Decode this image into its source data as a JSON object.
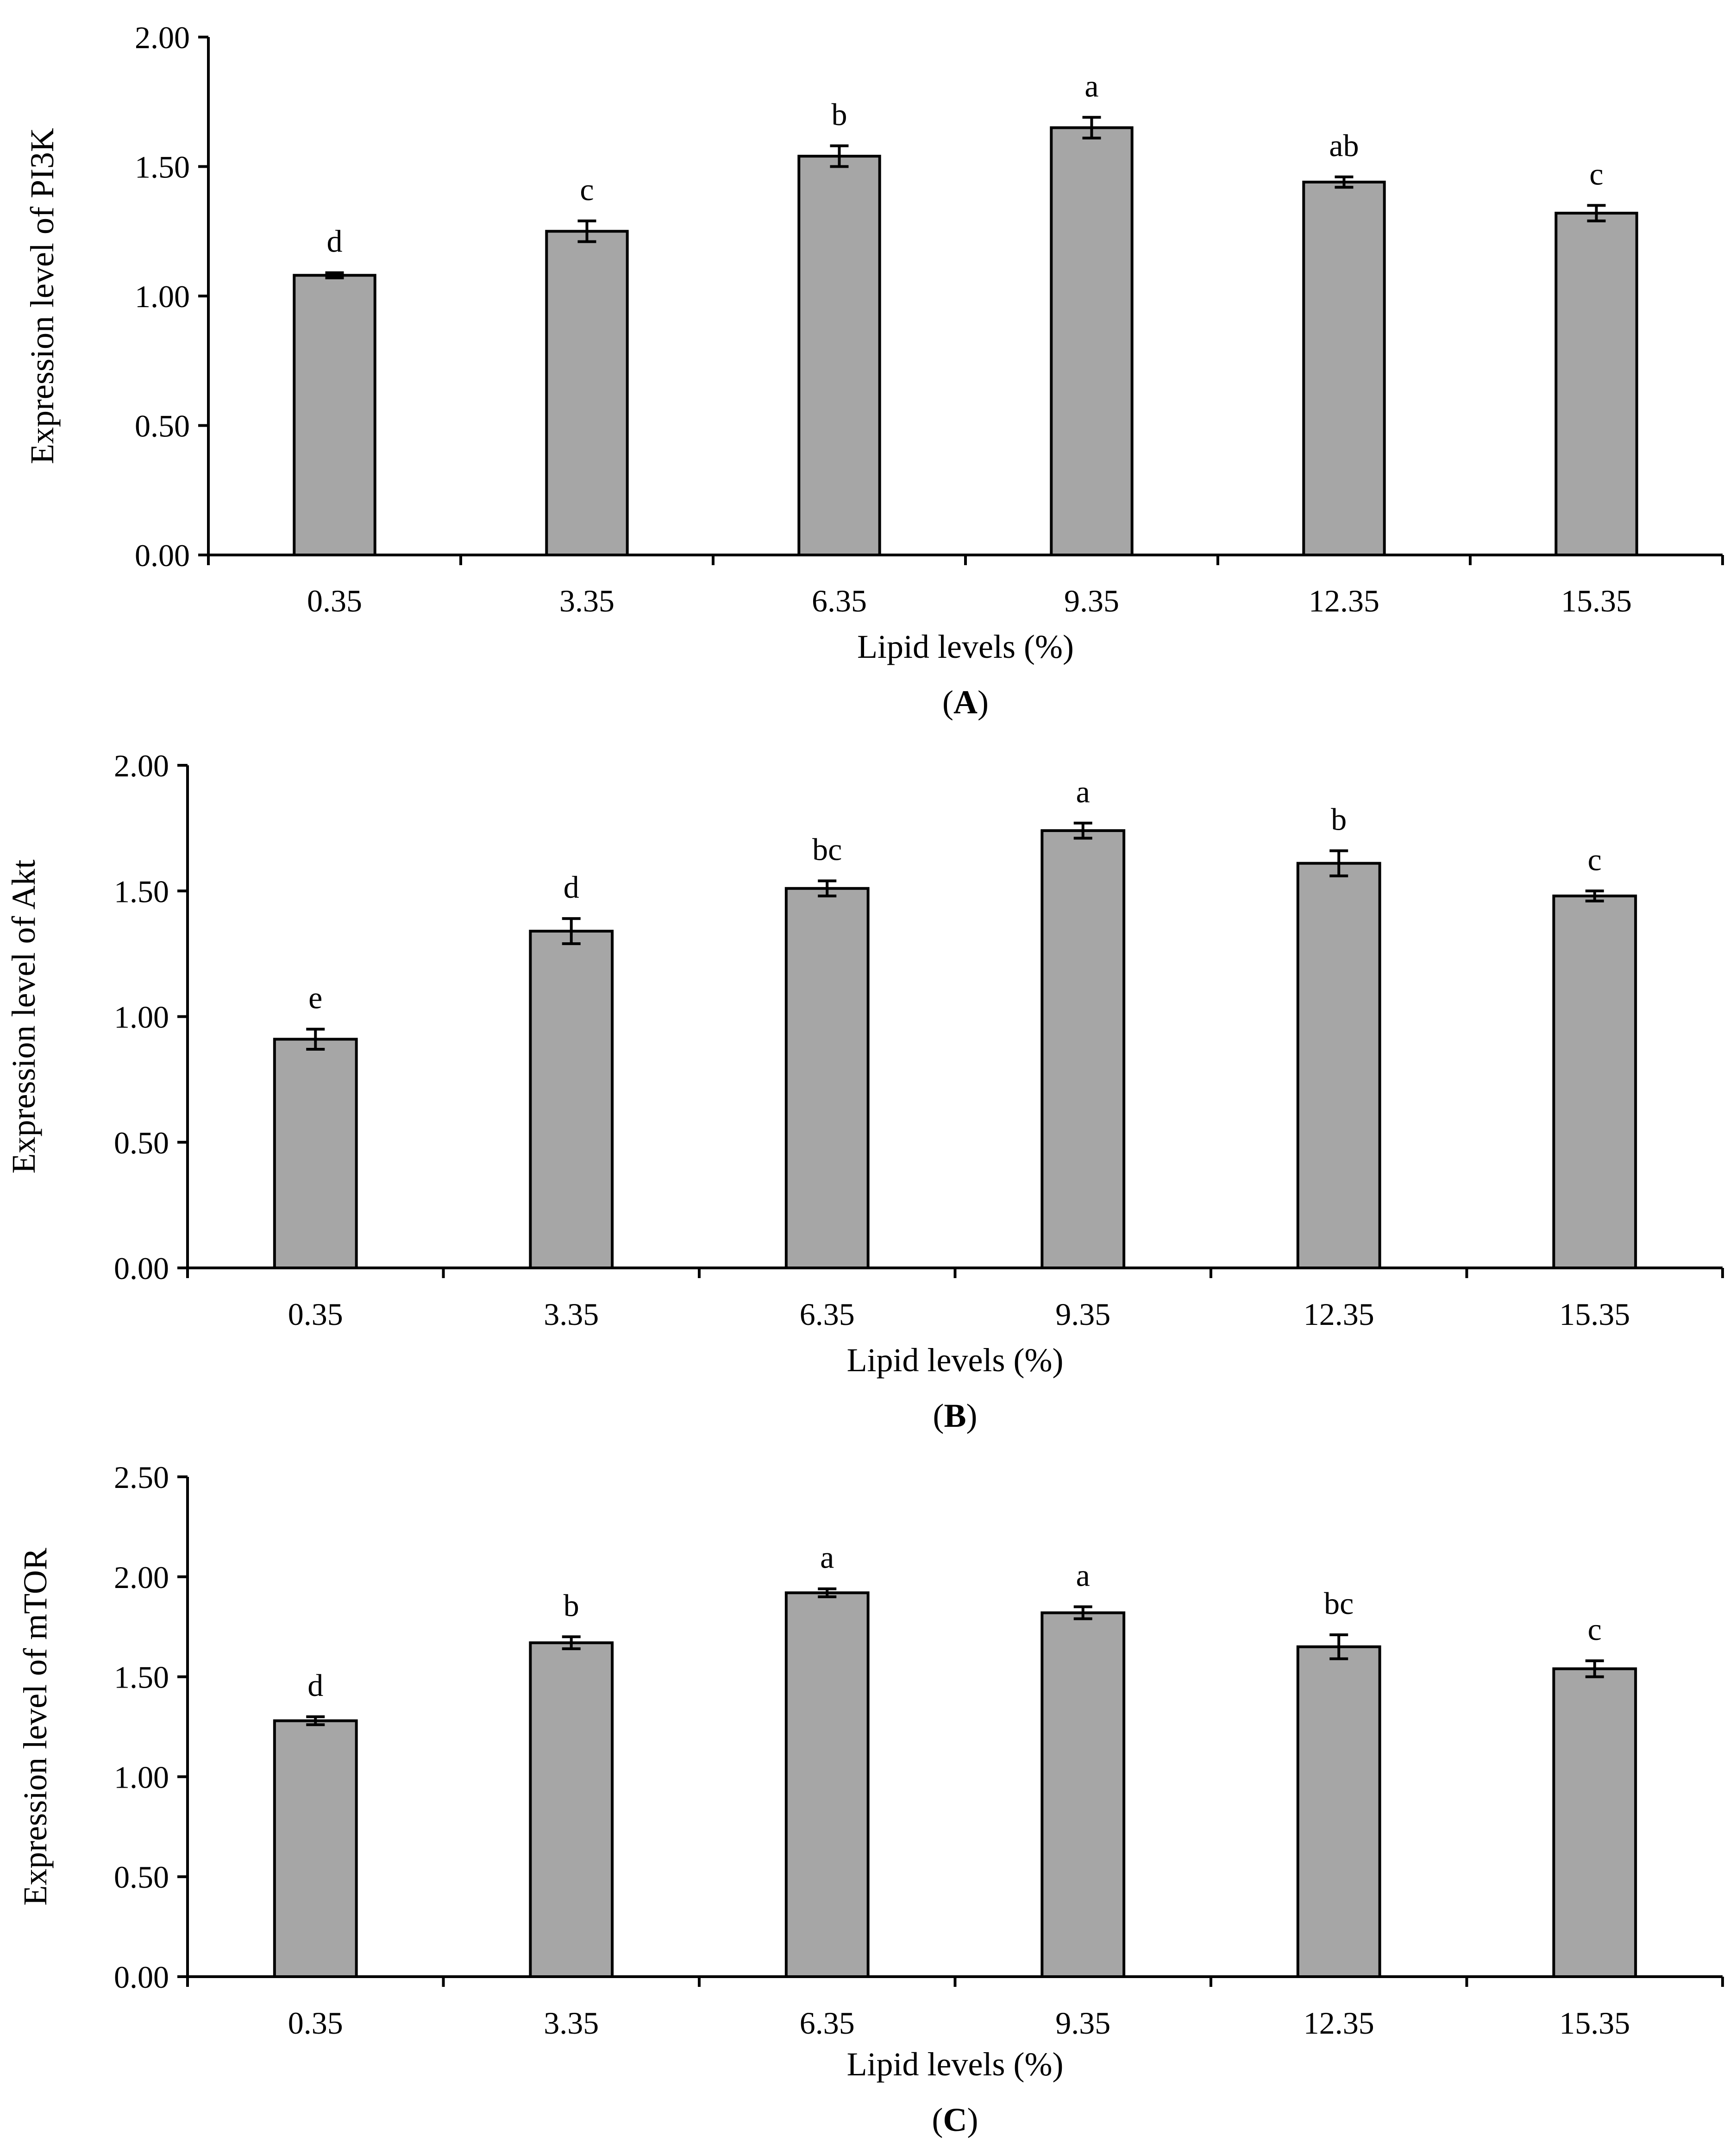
{
  "colors": {
    "bar_fill": "#a6a6a6",
    "bar_stroke": "#000000",
    "background": "#ffffff"
  },
  "chart_data": [
    {
      "type": "bar",
      "panel": "A",
      "categories": [
        "0.35",
        "3.35",
        "6.35",
        "9.35",
        "12.35",
        "15.35"
      ],
      "values": [
        1.08,
        1.25,
        1.54,
        1.65,
        1.44,
        1.32
      ],
      "errors": [
        0.01,
        0.04,
        0.04,
        0.04,
        0.02,
        0.03
      ],
      "significance": [
        "d",
        "c",
        "b",
        "a",
        "ab",
        "c"
      ],
      "xlabel": "Lipid levels (%)",
      "ylabel": "Expression level of PI3K",
      "yticks": [
        "0.00",
        "0.50",
        "1.00",
        "1.50",
        "2.00"
      ],
      "ylim": [
        0,
        2.0
      ],
      "grid": false,
      "caption": {
        "open": "(",
        "letter": "A",
        "close": ")"
      }
    },
    {
      "type": "bar",
      "panel": "B",
      "categories": [
        "0.35",
        "3.35",
        "6.35",
        "9.35",
        "12.35",
        "15.35"
      ],
      "values": [
        0.91,
        1.34,
        1.51,
        1.74,
        1.61,
        1.48
      ],
      "errors": [
        0.04,
        0.05,
        0.03,
        0.03,
        0.05,
        0.02
      ],
      "significance": [
        "e",
        "d",
        "bc",
        "a",
        "b",
        "c"
      ],
      "xlabel": "Lipid levels (%)",
      "ylabel": "Expression level of Akt",
      "yticks": [
        "0.00",
        "0.50",
        "1.00",
        "1.50",
        "2.00"
      ],
      "ylim": [
        0,
        2.0
      ],
      "grid": false,
      "caption": {
        "open": "(",
        "letter": "B",
        "close": ")"
      }
    },
    {
      "type": "bar",
      "panel": "C",
      "categories": [
        "0.35",
        "3.35",
        "6.35",
        "9.35",
        "12.35",
        "15.35"
      ],
      "values": [
        1.28,
        1.67,
        1.92,
        1.82,
        1.65,
        1.54
      ],
      "errors": [
        0.02,
        0.03,
        0.02,
        0.03,
        0.06,
        0.04
      ],
      "significance": [
        "d",
        "b",
        "a",
        "a",
        "bc",
        "c"
      ],
      "xlabel": "Lipid levels (%)",
      "ylabel": "Expression level of mTOR",
      "yticks": [
        "0.00",
        "0.50",
        "1.00",
        "1.50",
        "2.00",
        "2.50"
      ],
      "ylim": [
        0,
        2.5
      ],
      "grid": false,
      "caption": {
        "open": "(",
        "letter": "C",
        "close": ")"
      }
    }
  ]
}
